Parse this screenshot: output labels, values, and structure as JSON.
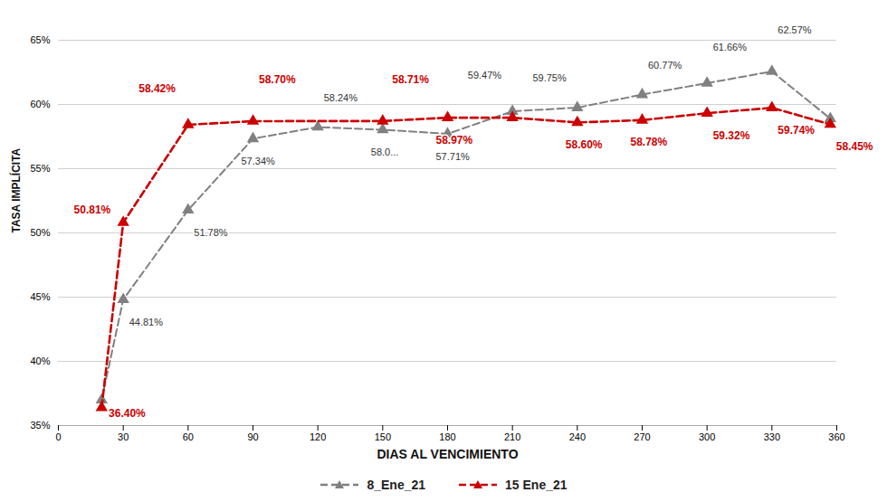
{
  "chart_data": {
    "type": "line",
    "xlabel": "DIAS AL VENCIMIENTO",
    "ylabel": "TASA IMPLÍCITA",
    "xlim": [
      0,
      360
    ],
    "ylim": [
      35,
      65
    ],
    "xticks": [
      0,
      30,
      60,
      90,
      120,
      150,
      180,
      210,
      240,
      270,
      300,
      330,
      360
    ],
    "yticks": [
      {
        "value": 35,
        "label": "35%"
      },
      {
        "value": 40,
        "label": "40%"
      },
      {
        "value": 45,
        "label": "45%"
      },
      {
        "value": 50,
        "label": "50%"
      },
      {
        "value": 55,
        "label": "55%"
      },
      {
        "value": 60,
        "label": "60%"
      },
      {
        "value": 65,
        "label": "65%"
      }
    ],
    "grid": true,
    "legend": "bottom",
    "series": [
      {
        "name": "8_Ene_21",
        "color": "#808080",
        "line_style": "dashed",
        "marker": "triangle",
        "x": [
          20,
          30,
          60,
          90,
          120,
          150,
          180,
          210,
          240,
          270,
          300,
          330,
          357
        ],
        "values": [
          37.0,
          44.81,
          51.78,
          57.34,
          58.24,
          58.03,
          57.71,
          59.47,
          59.75,
          60.77,
          61.66,
          62.57,
          58.9
        ],
        "annotations": [
          {
            "x": 30,
            "y": 44.81,
            "label": "44.81%"
          },
          {
            "x": 60,
            "y": 51.78,
            "label": "51.78%"
          },
          {
            "x": 90,
            "y": 57.34,
            "label": "57.34%"
          },
          {
            "x": 120,
            "y": 58.24,
            "label": "58.24%"
          },
          {
            "x": 150,
            "y": 58.03,
            "label": "58.0..."
          },
          {
            "x": 180,
            "y": 57.71,
            "label": "57.71%"
          },
          {
            "x": 210,
            "y": 59.47,
            "label": "59.47%"
          },
          {
            "x": 240,
            "y": 59.75,
            "label": "59.75%"
          },
          {
            "x": 270,
            "y": 60.77,
            "label": "60.77%"
          },
          {
            "x": 300,
            "y": 61.66,
            "label": "61.66%"
          },
          {
            "x": 330,
            "y": 62.57,
            "label": "62.57%"
          }
        ]
      },
      {
        "name": "15 Ene_21",
        "color": "#cc0000",
        "line_style": "dashed",
        "marker": "triangle",
        "x": [
          20,
          30,
          60,
          90,
          150,
          180,
          210,
          240,
          270,
          300,
          330,
          357
        ],
        "values": [
          36.4,
          50.81,
          58.42,
          58.7,
          58.71,
          58.97,
          58.97,
          58.6,
          58.78,
          59.32,
          59.74,
          58.45
        ],
        "annotations": [
          {
            "x": 20,
            "y": 36.4,
            "label": "36.40%"
          },
          {
            "x": 30,
            "y": 50.81,
            "label": "50.81%"
          },
          {
            "x": 60,
            "y": 58.42,
            "label": "58.42%"
          },
          {
            "x": 90,
            "y": 58.7,
            "label": "58.70%"
          },
          {
            "x": 150,
            "y": 58.71,
            "label": "58.71%"
          },
          {
            "x": 180,
            "y": 58.97,
            "label": "58.97%"
          },
          {
            "x": 240,
            "y": 58.6,
            "label": "58.60%"
          },
          {
            "x": 270,
            "y": 58.78,
            "label": "58.78%"
          },
          {
            "x": 300,
            "y": 59.32,
            "label": "59.32%"
          },
          {
            "x": 330,
            "y": 59.74,
            "label": "59.74%"
          },
          {
            "x": 357,
            "y": 58.45,
            "label": "58.45%"
          }
        ]
      }
    ]
  }
}
